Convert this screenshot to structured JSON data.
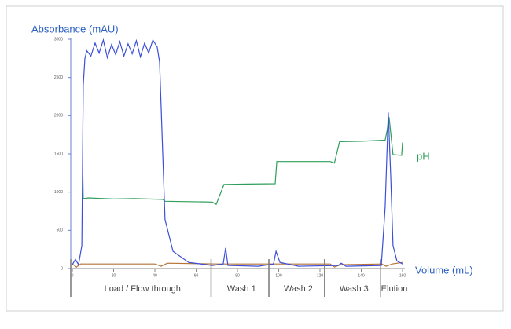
{
  "chart_data": {
    "type": "line",
    "y_label": "Absorbance (mAU)",
    "x_label": "Volume (mL)",
    "ylim": [
      0,
      3000
    ],
    "yticks": [
      0,
      500,
      1000,
      1500,
      2000,
      2500,
      3000
    ],
    "xlim": [
      0,
      160
    ],
    "xticks": [
      0,
      20,
      40,
      60,
      80,
      100,
      120,
      140,
      160
    ],
    "series": [
      {
        "name": "pH",
        "color": "#2e9e5b",
        "x": [
          5,
          5.3,
          8,
          20,
          30,
          43.8,
          45,
          67.8,
          69.7,
          73.5,
          85,
          98.3,
          99.1,
          110,
          125,
          127,
          129.5,
          140,
          151.6,
          152.5,
          153.5,
          155.4,
          159.6,
          160
        ],
        "values": [
          1400,
          915,
          925,
          910,
          915,
          905,
          880,
          870,
          840,
          1100,
          1105,
          1110,
          1400,
          1400,
          1400,
          1380,
          1660,
          1665,
          1680,
          1800,
          1980,
          1490,
          1480,
          1650
        ]
      },
      {
        "color": "#b5743a",
        "x": [
          0,
          2,
          4,
          40,
          43,
          46,
          70,
          100,
          125,
          127,
          130,
          150,
          152,
          155,
          160
        ],
        "values": [
          60,
          20,
          60,
          60,
          30,
          70,
          60,
          60,
          60,
          20,
          50,
          60,
          30,
          60,
          80
        ]
      },
      {
        "name": "Absorbance",
        "color": "#3b4fd8",
        "x": [
          0,
          1.5,
          3,
          4.6,
          5.3,
          6.1,
          7,
          9,
          11,
          13,
          15,
          17,
          19,
          21,
          23,
          25,
          27,
          29,
          31,
          33,
          35,
          37,
          39,
          41.1,
          42.3,
          43.8,
          44.9,
          48.8,
          56.4,
          67.8,
          73.1,
          74.3,
          75.4,
          90,
          97.5,
          98.7,
          100.6,
          109.7,
          128.8,
          130.3,
          132.6,
          149.7,
          151.6,
          153.1,
          154.3,
          155.4,
          157.3,
          160
        ],
        "values": [
          50,
          120,
          50,
          300,
          2400,
          2750,
          2850,
          2780,
          2950,
          2820,
          2990,
          2760,
          2930,
          2800,
          2970,
          2780,
          2940,
          2810,
          2980,
          2770,
          2950,
          2820,
          2990,
          2900,
          2700,
          1500,
          640,
          225,
          80,
          40,
          60,
          270,
          40,
          30,
          60,
          225,
          80,
          30,
          40,
          70,
          30,
          40,
          800,
          2040,
          1200,
          300,
          100,
          60
        ]
      }
    ],
    "phases": [
      "Load / Flow through",
      "Wash 1",
      "Wash 2",
      "Wash 3",
      "Elution"
    ],
    "phase_bounds": [
      0,
      68,
      96,
      123,
      150,
      162
    ]
  }
}
